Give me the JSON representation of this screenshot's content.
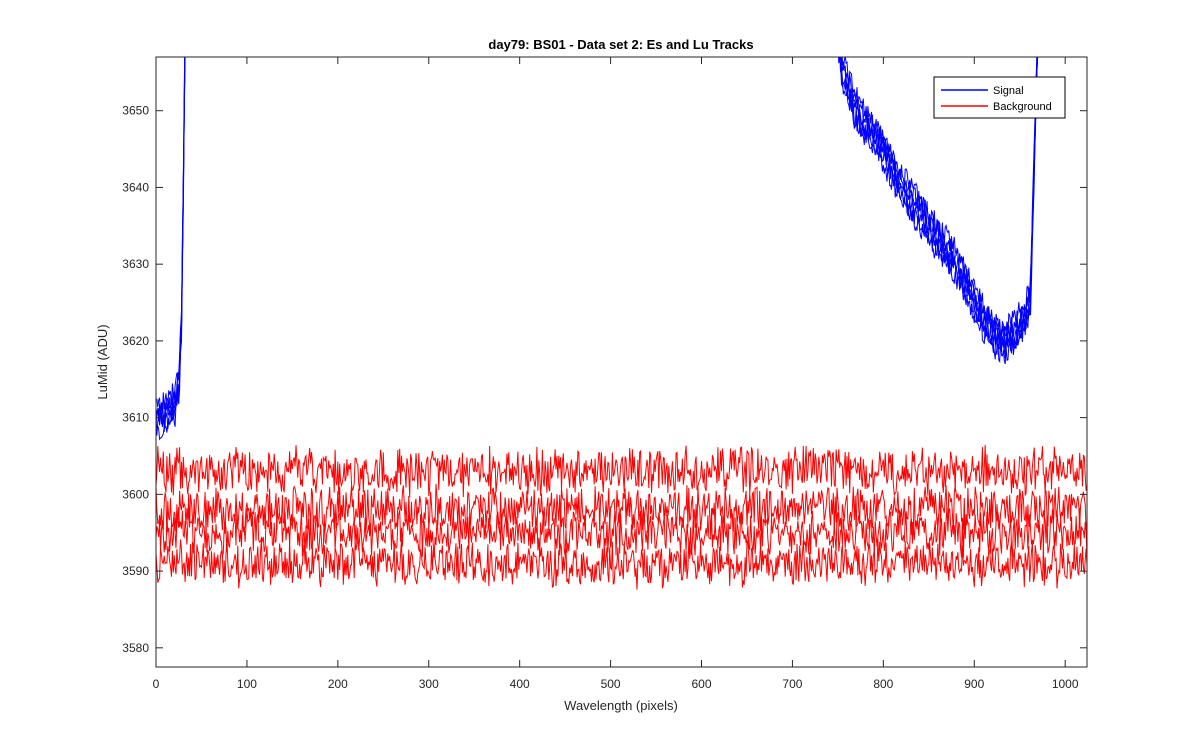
{
  "chart_data": {
    "type": "line",
    "title": "day79: BS01 - Data set 2: Es and Lu Tracks",
    "xlabel": "Wavelength (pixels)",
    "ylabel": "LuMid (ADU)",
    "xlim": [
      0,
      1024
    ],
    "ylim": [
      3577.5,
      3657
    ],
    "xticks": [
      0,
      100,
      200,
      300,
      400,
      500,
      600,
      700,
      800,
      900,
      1000
    ],
    "yticks": [
      3580,
      3590,
      3600,
      3610,
      3620,
      3630,
      3640,
      3650
    ],
    "grid": false,
    "legend": {
      "position": "top-right",
      "entries": [
        "Signal",
        "Background"
      ]
    },
    "colors": {
      "Signal": "#0000ff",
      "Background": "#ff0000",
      "axis": "#262626"
    },
    "series": [
      {
        "name": "Signal",
        "tracks": 6,
        "points": [
          [
            0,
            3610
          ],
          [
            10,
            3610.3
          ],
          [
            20,
            3611.5
          ],
          [
            25,
            3614
          ],
          [
            28,
            3622
          ],
          [
            30,
            3640
          ],
          [
            32,
            3660
          ],
          [
            750,
            3660
          ],
          [
            755,
            3655
          ],
          [
            770,
            3650
          ],
          [
            800,
            3645
          ],
          [
            820,
            3640
          ],
          [
            850,
            3635
          ],
          [
            880,
            3630
          ],
          [
            900,
            3625
          ],
          [
            920,
            3621
          ],
          [
            935,
            3620
          ],
          [
            945,
            3621
          ],
          [
            955,
            3623
          ],
          [
            962,
            3626
          ],
          [
            965,
            3640
          ],
          [
            970,
            3660
          ]
        ]
      },
      {
        "name": "Background",
        "tracks": 4,
        "levels": [
          3603,
          3598,
          3595,
          3591
        ],
        "x_range": [
          0,
          1024
        ]
      }
    ]
  }
}
